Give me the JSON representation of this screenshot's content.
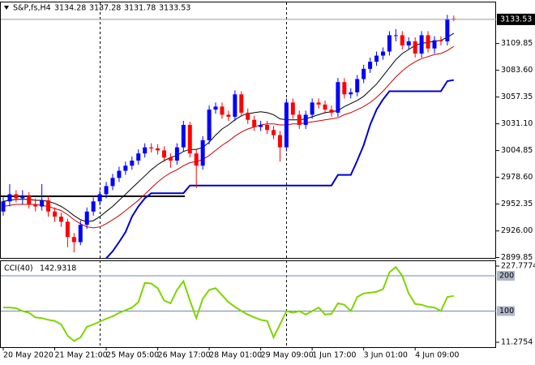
{
  "chart_data": [
    {
      "type": "candlestick",
      "title": "S&P,fs,H4",
      "categories": [
        "20 May 2020",
        null,
        null,
        null,
        null,
        null,
        null,
        null,
        "21 May 21:00",
        null,
        null,
        null,
        null,
        null,
        null,
        null,
        "25 May 05:00",
        null,
        null,
        null,
        null,
        null,
        null,
        null,
        "26 May 17:00",
        null,
        null,
        null,
        null,
        null,
        null,
        null,
        "28 May 01:00",
        null,
        null,
        null,
        null,
        null,
        null,
        null,
        "29 May 09:00",
        null,
        null,
        null,
        null,
        null,
        null,
        null,
        "1 Jun 17:00",
        null,
        null,
        null,
        null,
        null,
        null,
        null,
        "3 Jun 01:00",
        null,
        null,
        null,
        null,
        null,
        null,
        null,
        "4 Jun 09:00",
        null,
        null,
        null,
        null,
        null,
        null
      ],
      "open": [
        2945,
        2955,
        2962,
        2958,
        2960,
        2952,
        2950,
        2956,
        2945,
        2940,
        2935,
        2920,
        2915,
        2932,
        2945,
        2955,
        2962,
        2970,
        2978,
        2985,
        2990,
        2995,
        3002,
        3008,
        3007,
        3005,
        2998,
        2995,
        3008,
        3030,
        3002,
        2990,
        3015,
        3045,
        3048,
        3040,
        3038,
        3060,
        3042,
        3035,
        3028,
        3030,
        3025,
        3020,
        3008,
        3052,
        3040,
        3030,
        3040,
        3052,
        3050,
        3045,
        3042,
        3072,
        3060,
        3062,
        3075,
        3085,
        3092,
        3098,
        3102,
        3118,
        3118,
        3108,
        3112,
        3100,
        3118,
        3105,
        3113,
        3112,
        3134.28
      ],
      "high": [
        2959,
        2972,
        2966,
        2966,
        2964,
        2958,
        2972,
        2960,
        2949,
        2944,
        2938,
        2924,
        2936,
        2949,
        2959,
        2966,
        2974,
        2982,
        2989,
        2994,
        2999,
        3006,
        3012,
        3012,
        3011,
        3009,
        3002,
        3012,
        3034,
        3033,
        3006,
        3019,
        3049,
        3052,
        3052,
        3044,
        3064,
        3063,
        3046,
        3039,
        3034,
        3034,
        3029,
        3024,
        3056,
        3056,
        3044,
        3044,
        3056,
        3056,
        3054,
        3049,
        3076,
        3076,
        3066,
        3079,
        3089,
        3096,
        3102,
        3106,
        3122,
        3124,
        3122,
        3116,
        3116,
        3122,
        3122,
        3117,
        3117,
        3138,
        3137.28
      ],
      "low": [
        2941,
        2950,
        2954,
        2952,
        2948,
        2945,
        2946,
        2940,
        2935,
        2930,
        2910,
        2905,
        2912,
        2928,
        2941,
        2951,
        2958,
        2966,
        2974,
        2981,
        2986,
        2991,
        2998,
        3003,
        3001,
        2994,
        2988,
        2991,
        3004,
        2998,
        2968,
        2986,
        3011,
        3041,
        3036,
        3034,
        3034,
        3038,
        3031,
        3024,
        3024,
        3021,
        3016,
        2994,
        3004,
        3036,
        3026,
        3026,
        3036,
        3046,
        3041,
        3038,
        3038,
        3056,
        3056,
        3058,
        3071,
        3081,
        3088,
        3094,
        3098,
        3112,
        3104,
        3104,
        3096,
        3096,
        3101,
        3100,
        3108,
        3108,
        3131.78
      ],
      "close": [
        2955,
        2962,
        2958,
        2960,
        2952,
        2950,
        2956,
        2945,
        2940,
        2935,
        2920,
        2915,
        2932,
        2945,
        2955,
        2962,
        2970,
        2978,
        2985,
        2990,
        2995,
        3002,
        3008,
        3007,
        3005,
        2998,
        2995,
        3008,
        3030,
        3002,
        2990,
        3015,
        3045,
        3048,
        3040,
        3038,
        3060,
        3042,
        3035,
        3028,
        3030,
        3025,
        3020,
        3008,
        3052,
        3040,
        3030,
        3040,
        3052,
        3050,
        3045,
        3042,
        3072,
        3060,
        3062,
        3075,
        3085,
        3092,
        3098,
        3102,
        3118,
        3118,
        3108,
        3112,
        3100,
        3118,
        3105,
        3113,
        3112,
        3134,
        3133.53
      ],
      "up_color": "#0000ff",
      "down_color": "#ff0000",
      "overlays": [
        {
          "color": "#000000",
          "values": [
            2955,
            2956,
            2957,
            2957,
            2957,
            2956,
            2956,
            2955,
            2953,
            2950,
            2946,
            2941,
            2937,
            2935,
            2936,
            2940,
            2945,
            2950,
            2956,
            2962,
            2968,
            2974,
            2980,
            2986,
            2991,
            2995,
            2998,
            3000,
            3004,
            3006,
            3006,
            3008,
            3013,
            3020,
            3026,
            3030,
            3035,
            3039,
            3041,
            3042,
            3043,
            3042,
            3040,
            3036,
            3035,
            3035,
            3035,
            3036,
            3038,
            3040,
            3042,
            3043,
            3044,
            3048,
            3051,
            3054,
            3058,
            3064,
            3070,
            3078,
            3086,
            3094,
            3100,
            3104,
            3108,
            3110,
            3111,
            3112,
            3113,
            3116,
            3120
          ]
        },
        {
          "color": "#cc0000",
          "values": [
            2950,
            2951,
            2952,
            2952,
            2952,
            2952,
            2951,
            2950,
            2948,
            2946,
            2942,
            2937,
            2933,
            2930,
            2929,
            2930,
            2933,
            2937,
            2941,
            2946,
            2951,
            2956,
            2962,
            2968,
            2974,
            2979,
            2983,
            2986,
            2990,
            2993,
            2994,
            2996,
            3000,
            3005,
            3010,
            3014,
            3019,
            3023,
            3026,
            3028,
            3030,
            3031,
            3031,
            3030,
            3030,
            3031,
            3031,
            3032,
            3033,
            3034,
            3035,
            3036,
            3037,
            3040,
            3042,
            3045,
            3048,
            3052,
            3057,
            3063,
            3070,
            3077,
            3083,
            3088,
            3092,
            3095,
            3097,
            3099,
            3100,
            3103,
            3107
          ]
        },
        {
          "color": "#0000cc",
          "values": [
            null,
            null,
            null,
            null,
            null,
            null,
            null,
            null,
            null,
            null,
            null,
            null,
            null,
            null,
            null,
            null,
            2899,
            2906,
            2915,
            2925,
            2940,
            2950,
            2958,
            2963,
            2963,
            2963,
            2963,
            2963,
            2963,
            2970.6,
            2970.6,
            2970.6,
            2970.6,
            2970.6,
            2970.6,
            2970.6,
            2970.6,
            2970.6,
            2970.6,
            2970.6,
            2970.6,
            2970.6,
            2970.6,
            2970.6,
            2970.6,
            2970.6,
            2970.6,
            2970.6,
            2970.6,
            2970.6,
            2970.6,
            2970.6,
            2981,
            2981,
            2981,
            2995,
            3010,
            3030,
            3045,
            3055,
            3063,
            3063,
            3063,
            3063,
            3063,
            3063,
            3063,
            3063,
            3063,
            3073,
            3074
          ]
        }
      ],
      "hline": {
        "value": 2960,
        "color": "#000000"
      },
      "ylim": [
        2899.5,
        3143
      ],
      "yticks": [
        3109.85,
        {
          "value": 3083.6,
          "label": "3083.60"
        },
        3057.35,
        {
          "value": 3031.1,
          "label": "3031.10"
        },
        3004.85,
        {
          "value": 2978.6,
          "label": "2978.60"
        },
        2952.35,
        {
          "value": 2926,
          "label": "2926.00"
        },
        2899.85
      ]
    },
    {
      "type": "line",
      "title": "CCI(40)",
      "color": "#7fd400",
      "values": [
        110,
        110,
        108,
        100,
        95,
        82,
        80,
        75,
        72,
        62,
        30,
        15,
        25,
        55,
        62,
        70,
        78,
        85,
        95,
        102,
        110,
        125,
        180,
        178,
        165,
        130,
        122,
        160,
        185,
        130,
        80,
        135,
        160,
        165,
        145,
        125,
        112,
        100,
        90,
        82,
        75,
        72,
        25,
        62,
        100,
        95,
        100,
        90,
        100,
        110,
        90,
        92,
        122,
        118,
        100,
        140,
        150,
        152,
        155,
        162,
        210,
        225,
        200,
        150,
        120,
        118,
        112,
        110,
        100,
        140,
        142.9318
      ],
      "ylim": [
        11.2754,
        227.7774
      ],
      "yticks": [
        227.7774,
        11.2754
      ],
      "levels": [
        200,
        100
      ],
      "level_color": "#6a8caf"
    }
  ]
}
